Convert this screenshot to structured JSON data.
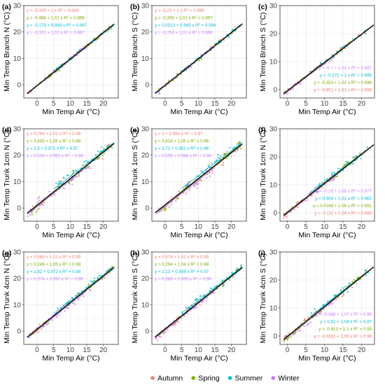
{
  "colors": {
    "Autumn": "#f0806f",
    "Spring": "#7cae00",
    "Summer": "#00bfd4",
    "Winter": "#c77cff"
  },
  "legend": [
    "Autumn",
    "Spring",
    "Summer",
    "Winter"
  ],
  "chart_data": [
    {
      "type": "scatter",
      "tag": "(a)",
      "xlabel": "Min Temp Air (°C)",
      "ylabel": "Min Temp Branch N (°C)",
      "x_ticks": [
        0,
        5,
        10,
        15,
        20
      ],
      "y_ticks": [
        0,
        10,
        20,
        30
      ],
      "xlim": [
        -4,
        24.5
      ],
      "ylim": [
        -5,
        30
      ],
      "grid": true,
      "eq_position": "top-left",
      "series": [
        {
          "name": "Autumn",
          "equation": "y = -0.309 + 1 x",
          "r2": "0.999",
          "intercept": -0.309,
          "slope": 1.0,
          "xrange": [
            -2,
            23
          ]
        },
        {
          "name": "Spring",
          "equation": "y = -0.466 + 1.01 x",
          "r2": "0.998",
          "intercept": -0.466,
          "slope": 1.01,
          "xrange": [
            -2,
            23
          ]
        },
        {
          "name": "Summer",
          "equation": "y = -0.179 + 0.994 x",
          "r2": "0.997",
          "intercept": -0.179,
          "slope": 0.994,
          "xrange": [
            5,
            23
          ]
        },
        {
          "name": "Winter",
          "equation": "y = -0.321 + 1.01 x",
          "r2": "0.997",
          "intercept": -0.321,
          "slope": 1.01,
          "xrange": [
            -3,
            15
          ]
        }
      ]
    },
    {
      "type": "scatter",
      "tag": "(b)",
      "xlabel": "Min Temp Air (°C)",
      "ylabel": "Min Temp Branch S (°C)",
      "x_ticks": [
        0,
        5,
        10,
        15,
        20
      ],
      "y_ticks": [
        0,
        10,
        20,
        30
      ],
      "xlim": [
        -4,
        24.5
      ],
      "ylim": [
        -5,
        30
      ],
      "grid": true,
      "eq_position": "top-left",
      "series": [
        {
          "name": "Autumn",
          "equation": "y = -0.23 + 1 x",
          "r2": "0.999",
          "intercept": -0.23,
          "slope": 1.0,
          "xrange": [
            -2,
            23
          ]
        },
        {
          "name": "Spring",
          "equation": "y = -0.356 + 1.01 x",
          "r2": "0.997",
          "intercept": -0.356,
          "slope": 1.01,
          "xrange": [
            -2,
            23
          ]
        },
        {
          "name": "Summer",
          "equation": "y = 0.0313 + 0.983 x",
          "r2": "0.994",
          "intercept": 0.0313,
          "slope": 0.983,
          "xrange": [
            5,
            23
          ]
        },
        {
          "name": "Winter",
          "equation": "y = -0.254 + 1.01 x",
          "r2": "0.996",
          "intercept": -0.254,
          "slope": 1.01,
          "xrange": [
            -3,
            15
          ]
        }
      ]
    },
    {
      "type": "scatter",
      "tag": "(c)",
      "xlabel": "Min Temp Air (°C)",
      "ylabel": "Min Temp Branch S (°C)",
      "x_ticks": [
        0,
        5,
        10,
        15,
        20
      ],
      "y_ticks": [
        0,
        10,
        20,
        30
      ],
      "xlim": [
        -2,
        23.5
      ],
      "ylim": [
        -3,
        30
      ],
      "grid": true,
      "eq_position": "bottom-right",
      "series": [
        {
          "name": "Winter",
          "equation": "y = -0.7 + 1.02 x",
          "r2": "0.997",
          "intercept": -0.7,
          "slope": 1.02,
          "xrange": [
            -1,
            13
          ]
        },
        {
          "name": "Summer",
          "equation": "y = -0.272 + 1 x",
          "r2": "0.996",
          "intercept": -0.272,
          "slope": 1.0,
          "xrange": [
            6,
            22
          ]
        },
        {
          "name": "Spring",
          "equation": "y = -0.353 + 1.01 x",
          "r2": "0.998",
          "intercept": -0.353,
          "slope": 1.01,
          "xrange": [
            -1,
            21
          ]
        },
        {
          "name": "Autumn",
          "equation": "y = -0.451 + 1.01 x",
          "r2": "0.999",
          "intercept": -0.451,
          "slope": 1.01,
          "xrange": [
            -1,
            21
          ]
        }
      ]
    },
    {
      "type": "scatter",
      "tag": "(d)",
      "xlabel": "Min Temp Air (°C)",
      "ylabel": "Min Temp Trunk 1cm N (°C)",
      "x_ticks": [
        0,
        5,
        10,
        15,
        20
      ],
      "y_ticks": [
        0,
        10,
        20,
        30
      ],
      "xlim": [
        -4,
        24.5
      ],
      "ylim": [
        -5,
        30
      ],
      "grid": true,
      "eq_position": "top-left",
      "series": [
        {
          "name": "Autumn",
          "equation": "y = 0.764 + 1.02 x",
          "r2": "0.99",
          "intercept": 0.764,
          "slope": 1.02,
          "xrange": [
            -2,
            23
          ]
        },
        {
          "name": "Spring",
          "equation": "y = 0.443 + 1.05 x",
          "r2": "0.98",
          "intercept": 0.443,
          "slope": 1.05,
          "xrange": [
            -2,
            23
          ]
        },
        {
          "name": "Summer",
          "equation": "y = 2.3 + 0.971 x",
          "r2": "0.97",
          "intercept": 2.3,
          "slope": 0.971,
          "xrange": [
            5,
            23
          ]
        },
        {
          "name": "Winter",
          "equation": "y = 0.554 + 0.992 x",
          "r2": "0.98",
          "intercept": 0.554,
          "slope": 0.992,
          "xrange": [
            -3,
            15
          ]
        }
      ]
    },
    {
      "type": "scatter",
      "tag": "(e)",
      "xlabel": "Min Temp Air (°C)",
      "ylabel": "Min Temp Trunk 1cm S (°C)",
      "x_ticks": [
        0,
        5,
        10,
        15,
        20
      ],
      "y_ticks": [
        0,
        10,
        20,
        30
      ],
      "xlim": [
        -4,
        24.5
      ],
      "ylim": [
        -5,
        30
      ],
      "grid": true,
      "eq_position": "top-left",
      "series": [
        {
          "name": "Autumn",
          "equation": "y = 1 + 0.984 x",
          "r2": "0.97",
          "intercept": 1.0,
          "slope": 0.984,
          "xrange": [
            -2,
            23
          ]
        },
        {
          "name": "Spring",
          "equation": "y = 0.418 + 1.05 x",
          "r2": "0.96",
          "intercept": 0.418,
          "slope": 1.05,
          "xrange": [
            -2,
            23
          ]
        },
        {
          "name": "Summer",
          "equation": "y = 2.71 + 0.951 x",
          "r2": "0.96",
          "intercept": 2.71,
          "slope": 0.951,
          "xrange": [
            5,
            23
          ]
        },
        {
          "name": "Winter",
          "equation": "y = 0.556 + 0.988 x",
          "r2": "0.98",
          "intercept": 0.556,
          "slope": 0.988,
          "xrange": [
            -3,
            15
          ]
        }
      ]
    },
    {
      "type": "scatter",
      "tag": "(f)",
      "xlabel": "Min Temp Air (°C)",
      "ylabel": "Min Temp Trunk 1cm N (°C)",
      "x_ticks": [
        0,
        5,
        10,
        15,
        20
      ],
      "y_ticks": [
        0,
        10,
        20,
        30
      ],
      "xlim": [
        -2,
        23.5
      ],
      "ylim": [
        -3,
        30
      ],
      "grid": true,
      "eq_position": "bottom-right",
      "series": [
        {
          "name": "Winter",
          "equation": "y = -0.29 + 1.05 x",
          "r2": "0.977",
          "intercept": -0.29,
          "slope": 1.05,
          "xrange": [
            -1,
            13
          ]
        },
        {
          "name": "Summer",
          "equation": "y = 0.904 + 1.01 x",
          "r2": "0.981",
          "intercept": 0.904,
          "slope": 1.01,
          "xrange": [
            6,
            22
          ]
        },
        {
          "name": "Spring",
          "equation": "y = 0.0166 + 1.05 x",
          "r2": "0.991",
          "intercept": 0.0166,
          "slope": 1.05,
          "xrange": [
            -1,
            21
          ]
        },
        {
          "name": "Autumn",
          "equation": "y = -0.111 + 1.04 x",
          "r2": "0.995",
          "intercept": -0.111,
          "slope": 1.04,
          "xrange": [
            -1,
            21
          ]
        }
      ]
    },
    {
      "type": "scatter",
      "tag": "(g)",
      "xlabel": "Min Temp Air (°C)",
      "ylabel": "Min Temp Trunk 4cm N (°C)",
      "x_ticks": [
        0,
        5,
        10,
        15,
        20
      ],
      "y_ticks": [
        0,
        10,
        20,
        30
      ],
      "xlim": [
        -4,
        24.5
      ],
      "ylim": [
        -5,
        30
      ],
      "grid": true,
      "eq_position": "top-left",
      "series": [
        {
          "name": "Autumn",
          "equation": "y = 0.569 + 1.01 x",
          "r2": "0.99",
          "intercept": 0.569,
          "slope": 1.01,
          "xrange": [
            -2,
            23
          ]
        },
        {
          "name": "Spring",
          "equation": "y = 0.246 + 1.05 x",
          "r2": "0.98",
          "intercept": 0.246,
          "slope": 1.05,
          "xrange": [
            -2,
            23
          ]
        },
        {
          "name": "Summer",
          "equation": "y = 1.82 + 0.972 x",
          "r2": "0.98",
          "intercept": 1.82,
          "slope": 0.972,
          "xrange": [
            5,
            23
          ]
        },
        {
          "name": "Winter",
          "equation": "y = 0.374 + 0.997 x",
          "r2": "0.99",
          "intercept": 0.374,
          "slope": 0.997,
          "xrange": [
            -3,
            15
          ]
        }
      ]
    },
    {
      "type": "scatter",
      "tag": "(h)",
      "xlabel": "Min Temp Air (°C)",
      "ylabel": "Min Temp Trunk 4cm S (°C)",
      "x_ticks": [
        0,
        5,
        10,
        15,
        20
      ],
      "y_ticks": [
        0,
        10,
        20,
        30
      ],
      "xlim": [
        -4,
        24.5
      ],
      "ylim": [
        -5,
        30
      ],
      "grid": true,
      "eq_position": "top-left",
      "series": [
        {
          "name": "Autumn",
          "equation": "y = 0.574 + 1.01 x",
          "r2": "0.99",
          "intercept": 0.574,
          "slope": 1.01,
          "xrange": [
            -2,
            23
          ]
        },
        {
          "name": "Spring",
          "equation": "y = 0.294 + 1.04 x",
          "r2": "0.98",
          "intercept": 0.294,
          "slope": 1.04,
          "xrange": [
            -2,
            23
          ]
        },
        {
          "name": "Summer",
          "equation": "y = 2.13 + 0.958 x",
          "r2": "0.97",
          "intercept": 2.13,
          "slope": 0.958,
          "xrange": [
            5,
            23
          ]
        },
        {
          "name": "Winter",
          "equation": "y = 0.388 + 0.995 x",
          "r2": "0.99",
          "intercept": 0.388,
          "slope": 0.995,
          "xrange": [
            -3,
            15
          ]
        }
      ]
    },
    {
      "type": "scatter",
      "tag": "(i)",
      "xlabel": "Min Temp Air (°C)",
      "ylabel": "Min Temp Trunk 4cm S (°C)",
      "x_ticks": [
        0,
        5,
        10,
        15,
        20
      ],
      "y_ticks": [
        0,
        10,
        20,
        30
      ],
      "xlim": [
        -2,
        23.5
      ],
      "ylim": [
        -3,
        30
      ],
      "grid": true,
      "eq_position": "bottom-right",
      "series": [
        {
          "name": "Winter",
          "equation": "y = -0.566 + 1.07 x",
          "r2": "0.96",
          "intercept": -0.566,
          "slope": 1.07,
          "xrange": [
            -1,
            13
          ]
        },
        {
          "name": "Summer",
          "equation": "y = 0.62 + 1.04 x",
          "r2": "0.97",
          "intercept": 0.62,
          "slope": 1.04,
          "xrange": [
            6,
            22
          ]
        },
        {
          "name": "Spring",
          "equation": "y = -0.613 + 1.1 x",
          "r2": "0.99",
          "intercept": -0.613,
          "slope": 1.1,
          "xrange": [
            -1,
            21
          ]
        },
        {
          "name": "Autumn",
          "equation": "y = -0.0331 + 1.05 x",
          "r2": "0.99",
          "intercept": -0.0331,
          "slope": 1.05,
          "xrange": [
            -1,
            21
          ]
        }
      ]
    }
  ]
}
